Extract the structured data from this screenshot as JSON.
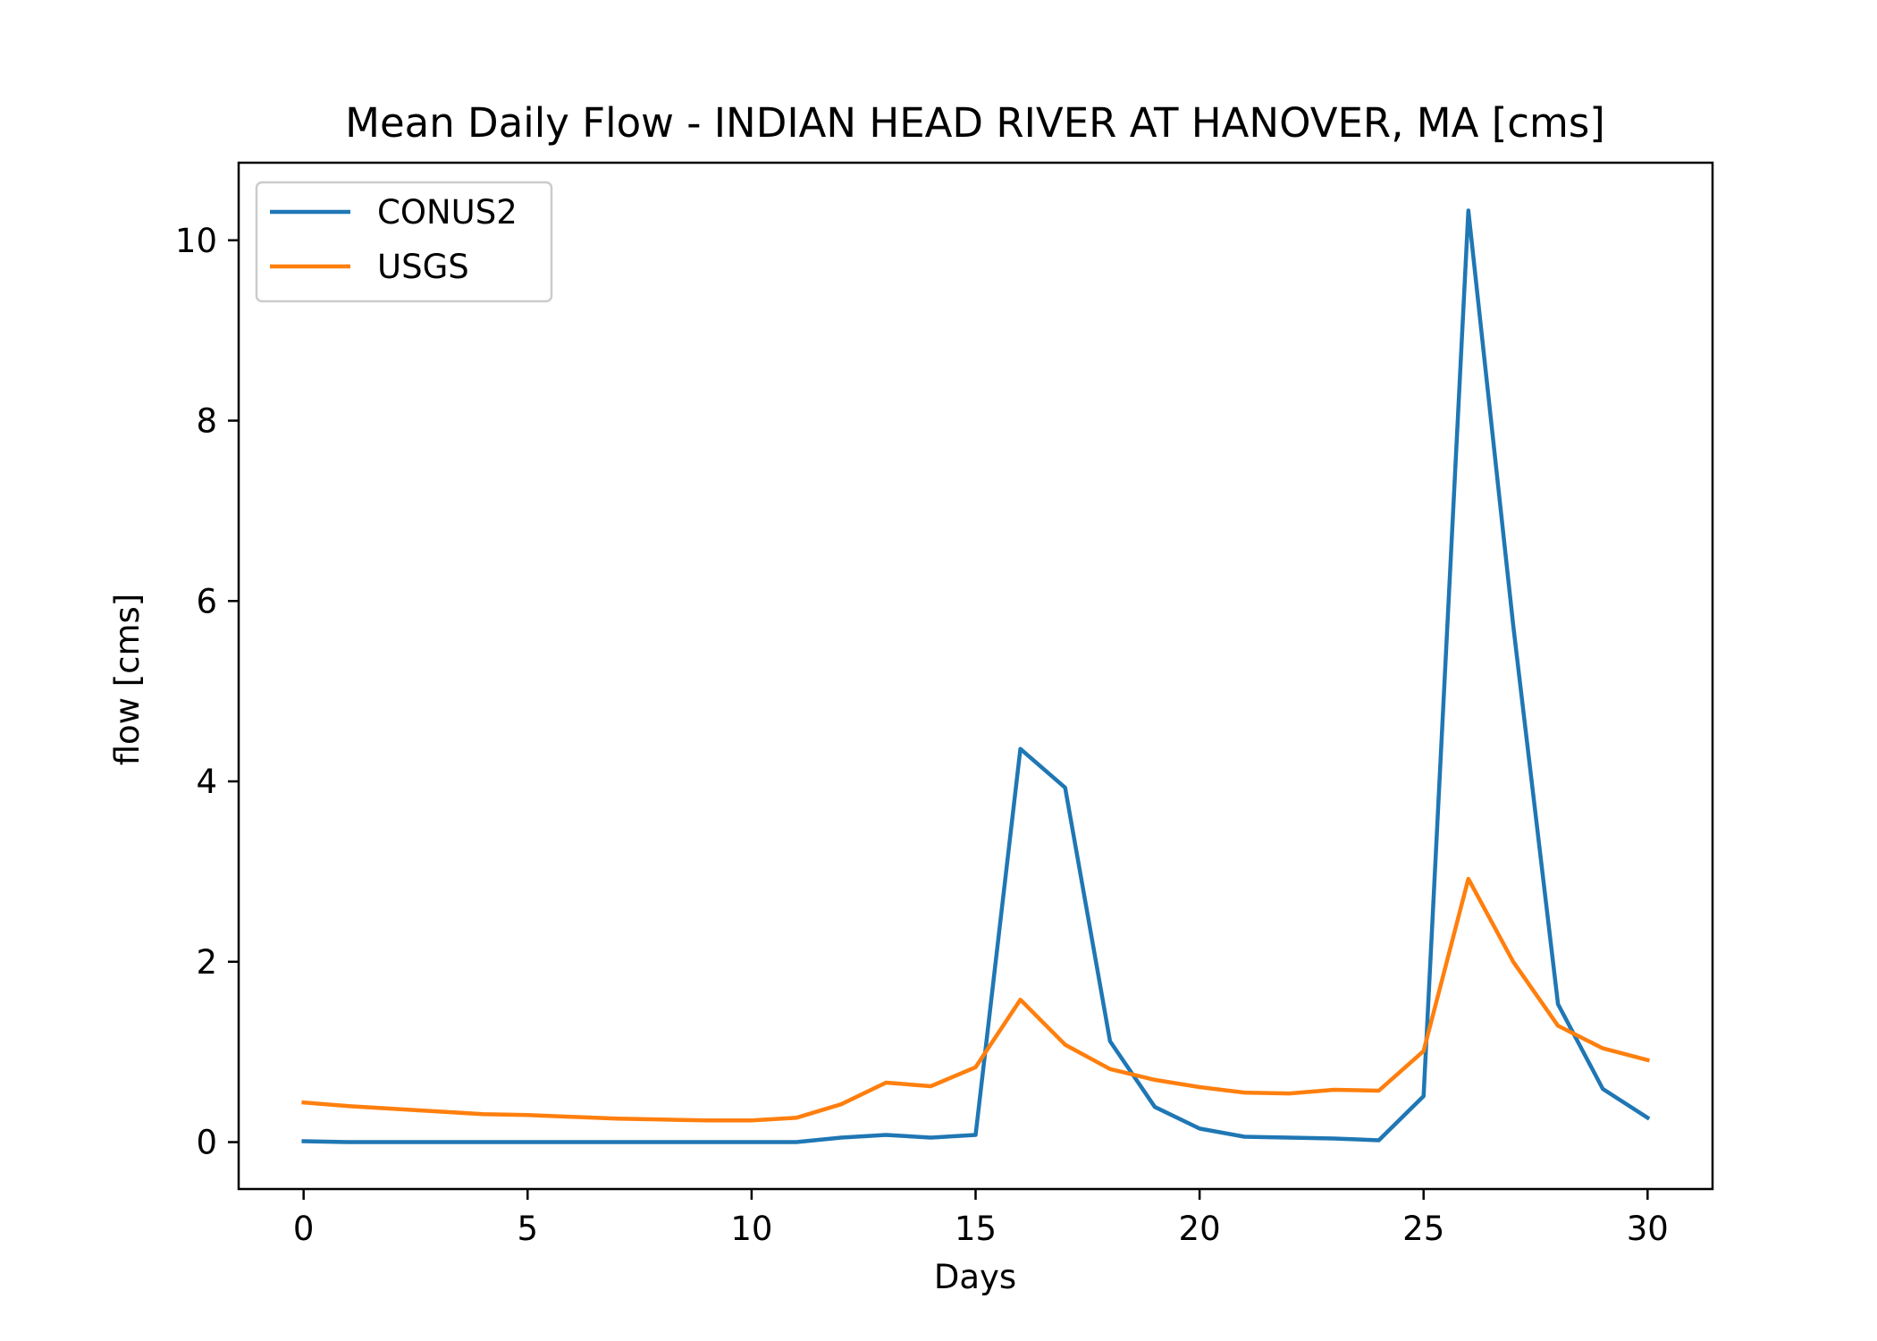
{
  "chart_data": {
    "type": "line",
    "title": "Mean Daily Flow - INDIAN HEAD RIVER AT HANOVER, MA [cms]",
    "xlabel": "Days",
    "ylabel": "flow [cms]",
    "xlim": [
      -1.45,
      31.45
    ],
    "ylim": [
      -0.52,
      10.86
    ],
    "xticks": [
      0,
      5,
      10,
      15,
      20,
      25,
      30
    ],
    "yticks": [
      0,
      2,
      4,
      6,
      8,
      10
    ],
    "grid": false,
    "legend_position": "top-left",
    "x": [
      0,
      1,
      2,
      3,
      4,
      5,
      6,
      7,
      8,
      9,
      10,
      11,
      12,
      13,
      14,
      15,
      16,
      17,
      18,
      19,
      20,
      21,
      22,
      23,
      24,
      25,
      26,
      27,
      28,
      29,
      30
    ],
    "series": [
      {
        "name": "CONUS2",
        "color": "#1f77b4",
        "values": [
          0.01,
          0.0,
          0.0,
          0.0,
          0.0,
          0.0,
          0.0,
          0.0,
          0.0,
          0.0,
          0.0,
          0.0,
          0.05,
          0.08,
          0.05,
          0.08,
          4.36,
          3.93,
          1.12,
          0.39,
          0.15,
          0.06,
          0.05,
          0.04,
          0.02,
          0.51,
          10.33,
          5.73,
          1.53,
          0.59,
          0.27
        ]
      },
      {
        "name": "USGS",
        "color": "#ff7f0e",
        "values": [
          0.44,
          0.4,
          0.37,
          0.34,
          0.31,
          0.3,
          0.28,
          0.26,
          0.25,
          0.24,
          0.24,
          0.27,
          0.42,
          0.66,
          0.62,
          0.83,
          1.58,
          1.08,
          0.81,
          0.69,
          0.61,
          0.55,
          0.54,
          0.58,
          0.57,
          1.01,
          2.92,
          2.0,
          1.29,
          1.04,
          0.91
        ]
      }
    ]
  }
}
